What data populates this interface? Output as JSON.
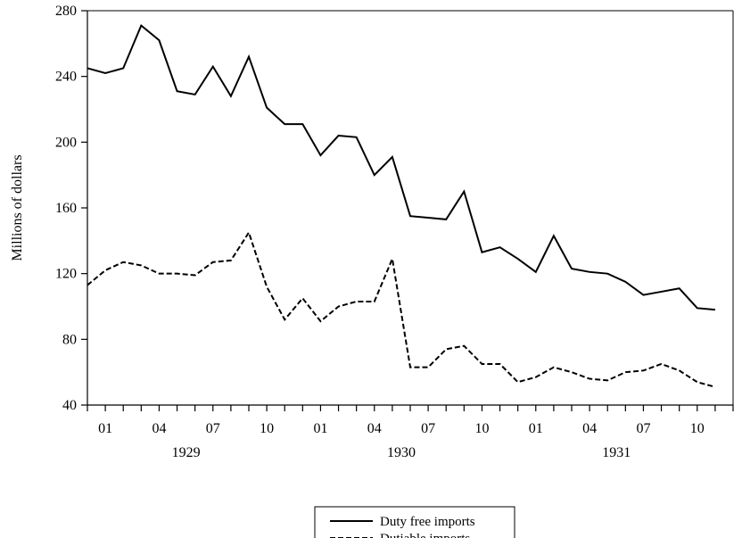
{
  "chart_data": {
    "type": "line",
    "ylabel": "Millions of dollars",
    "ylim": [
      40,
      280
    ],
    "yticks": [
      40,
      80,
      120,
      160,
      200,
      240,
      280
    ],
    "xlim": [
      0,
      36
    ],
    "x_tick_labels": [
      {
        "x": 1,
        "label": "01"
      },
      {
        "x": 4,
        "label": "04"
      },
      {
        "x": 7,
        "label": "07"
      },
      {
        "x": 10,
        "label": "10"
      },
      {
        "x": 13,
        "label": "01"
      },
      {
        "x": 16,
        "label": "04"
      },
      {
        "x": 19,
        "label": "07"
      },
      {
        "x": 22,
        "label": "10"
      },
      {
        "x": 25,
        "label": "01"
      },
      {
        "x": 28,
        "label": "04"
      },
      {
        "x": 31,
        "label": "07"
      },
      {
        "x": 34,
        "label": "10"
      }
    ],
    "year_labels": [
      {
        "x": 5.5,
        "label": "1929"
      },
      {
        "x": 17.5,
        "label": "1930"
      },
      {
        "x": 29.5,
        "label": "1931"
      }
    ],
    "grid": false,
    "legend": "bottom-center",
    "series": [
      {
        "name": "Duty free imports",
        "style": "solid",
        "color": "#000000",
        "x": [
          0,
          1,
          2,
          3,
          4,
          5,
          6,
          7,
          8,
          9,
          10,
          11,
          12,
          13,
          14,
          15,
          16,
          17,
          18,
          19,
          20,
          21,
          22,
          23,
          24,
          25,
          26,
          27,
          28,
          29,
          30,
          31,
          32,
          33,
          34,
          35
        ],
        "values": [
          245,
          242,
          245,
          271,
          262,
          231,
          229,
          246,
          228,
          252,
          221,
          211,
          211,
          192,
          204,
          203,
          180,
          191,
          155,
          154,
          153,
          170,
          133,
          136,
          129,
          121,
          143,
          123,
          121,
          120,
          115,
          107,
          109,
          111,
          99,
          98
        ]
      },
      {
        "name": "Dutiable imports",
        "style": "dashed",
        "color": "#000000",
        "x": [
          0,
          1,
          2,
          3,
          4,
          5,
          6,
          7,
          8,
          9,
          10,
          11,
          12,
          13,
          14,
          15,
          16,
          17,
          18,
          19,
          20,
          21,
          22,
          23,
          24,
          25,
          26,
          27,
          28,
          29,
          30,
          31,
          32,
          33,
          34,
          35
        ],
        "values": [
          113,
          122,
          127,
          125,
          120,
          120,
          119,
          127,
          128,
          145,
          112,
          92,
          105,
          91,
          100,
          103,
          103,
          129,
          63,
          63,
          74,
          76,
          65,
          65,
          54,
          57,
          63,
          60,
          56,
          55,
          60,
          61,
          65,
          61,
          54,
          51
        ]
      }
    ]
  }
}
